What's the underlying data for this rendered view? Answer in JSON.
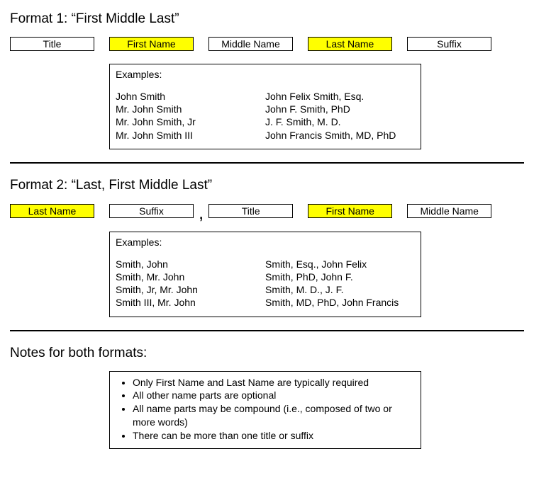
{
  "format1": {
    "title": "Format 1: “First Middle Last”",
    "pills": [
      {
        "label": "Title",
        "highlight": false
      },
      {
        "label": "First Name",
        "highlight": true
      },
      {
        "label": "Middle Name",
        "highlight": false
      },
      {
        "label": "Last Name",
        "highlight": true
      },
      {
        "label": "Suffix",
        "highlight": false
      }
    ],
    "examples_label": "Examples:",
    "examples_left": [
      "John Smith",
      "Mr. John Smith",
      "Mr. John Smith, Jr",
      "Mr. John Smith III"
    ],
    "examples_right": [
      "John Felix Smith, Esq.",
      "John F. Smith, PhD",
      "J. F. Smith, M. D.",
      "John Francis Smith, MD, PhD"
    ]
  },
  "format2": {
    "title": "Format 2: “Last, First Middle Last”",
    "pills": [
      {
        "label": "Last Name",
        "highlight": true
      },
      {
        "label": "Suffix",
        "highlight": false
      },
      {
        "label": ",",
        "comma": true
      },
      {
        "label": "Title",
        "highlight": false
      },
      {
        "label": "First Name",
        "highlight": true
      },
      {
        "label": "Middle Name",
        "highlight": false
      }
    ],
    "examples_label": "Examples:",
    "examples_left": [
      "Smith, John",
      "Smith, Mr. John",
      "Smith, Jr, Mr. John",
      "Smith III, Mr. John"
    ],
    "examples_right": [
      "Smith, Esq., John Felix",
      "Smith, PhD, John F.",
      "Smith, M. D., J. F.",
      "Smith, MD, PhD, John Francis"
    ]
  },
  "notes": {
    "title": "Notes for both formats:",
    "items": [
      "Only First Name and Last Name are typically required",
      "All other name parts are optional",
      "All name parts may be compound (i.e., composed of two or more words)",
      "There can be more than one title or suffix"
    ]
  },
  "colors": {
    "highlight": "#ffff00",
    "border": "#000000",
    "background": "#ffffff",
    "text": "#000000"
  }
}
